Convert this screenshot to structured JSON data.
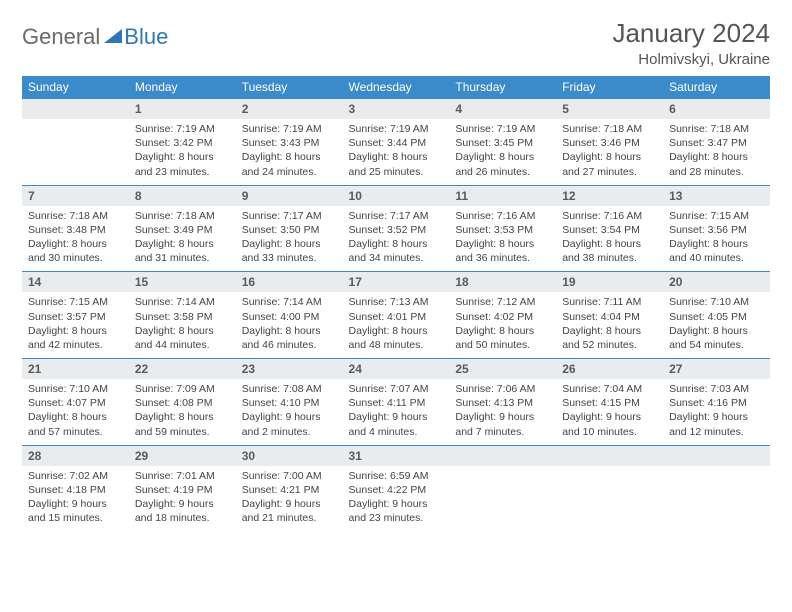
{
  "logo": {
    "general": "General",
    "blue": "Blue"
  },
  "title": "January 2024",
  "location": "Holmivskyi, Ukraine",
  "colors": {
    "header_bg": "#3b8aca",
    "header_text": "#ffffff",
    "daynum_bg": "#e8ecef",
    "border": "#3b8aca",
    "body_text": "#444444",
    "title_text": "#555555"
  },
  "typography": {
    "title_fontsize": 26,
    "location_fontsize": 15,
    "dayheader_fontsize": 12,
    "daynum_fontsize": 12,
    "cell_fontsize": 10.5
  },
  "day_headers": [
    "Sunday",
    "Monday",
    "Tuesday",
    "Wednesday",
    "Thursday",
    "Friday",
    "Saturday"
  ],
  "weeks": [
    [
      {
        "n": "",
        "sr": "",
        "ss": "",
        "dl1": "",
        "dl2": ""
      },
      {
        "n": "1",
        "sr": "Sunrise: 7:19 AM",
        "ss": "Sunset: 3:42 PM",
        "dl1": "Daylight: 8 hours",
        "dl2": "and 23 minutes."
      },
      {
        "n": "2",
        "sr": "Sunrise: 7:19 AM",
        "ss": "Sunset: 3:43 PM",
        "dl1": "Daylight: 8 hours",
        "dl2": "and 24 minutes."
      },
      {
        "n": "3",
        "sr": "Sunrise: 7:19 AM",
        "ss": "Sunset: 3:44 PM",
        "dl1": "Daylight: 8 hours",
        "dl2": "and 25 minutes."
      },
      {
        "n": "4",
        "sr": "Sunrise: 7:19 AM",
        "ss": "Sunset: 3:45 PM",
        "dl1": "Daylight: 8 hours",
        "dl2": "and 26 minutes."
      },
      {
        "n": "5",
        "sr": "Sunrise: 7:18 AM",
        "ss": "Sunset: 3:46 PM",
        "dl1": "Daylight: 8 hours",
        "dl2": "and 27 minutes."
      },
      {
        "n": "6",
        "sr": "Sunrise: 7:18 AM",
        "ss": "Sunset: 3:47 PM",
        "dl1": "Daylight: 8 hours",
        "dl2": "and 28 minutes."
      }
    ],
    [
      {
        "n": "7",
        "sr": "Sunrise: 7:18 AM",
        "ss": "Sunset: 3:48 PM",
        "dl1": "Daylight: 8 hours",
        "dl2": "and 30 minutes."
      },
      {
        "n": "8",
        "sr": "Sunrise: 7:18 AM",
        "ss": "Sunset: 3:49 PM",
        "dl1": "Daylight: 8 hours",
        "dl2": "and 31 minutes."
      },
      {
        "n": "9",
        "sr": "Sunrise: 7:17 AM",
        "ss": "Sunset: 3:50 PM",
        "dl1": "Daylight: 8 hours",
        "dl2": "and 33 minutes."
      },
      {
        "n": "10",
        "sr": "Sunrise: 7:17 AM",
        "ss": "Sunset: 3:52 PM",
        "dl1": "Daylight: 8 hours",
        "dl2": "and 34 minutes."
      },
      {
        "n": "11",
        "sr": "Sunrise: 7:16 AM",
        "ss": "Sunset: 3:53 PM",
        "dl1": "Daylight: 8 hours",
        "dl2": "and 36 minutes."
      },
      {
        "n": "12",
        "sr": "Sunrise: 7:16 AM",
        "ss": "Sunset: 3:54 PM",
        "dl1": "Daylight: 8 hours",
        "dl2": "and 38 minutes."
      },
      {
        "n": "13",
        "sr": "Sunrise: 7:15 AM",
        "ss": "Sunset: 3:56 PM",
        "dl1": "Daylight: 8 hours",
        "dl2": "and 40 minutes."
      }
    ],
    [
      {
        "n": "14",
        "sr": "Sunrise: 7:15 AM",
        "ss": "Sunset: 3:57 PM",
        "dl1": "Daylight: 8 hours",
        "dl2": "and 42 minutes."
      },
      {
        "n": "15",
        "sr": "Sunrise: 7:14 AM",
        "ss": "Sunset: 3:58 PM",
        "dl1": "Daylight: 8 hours",
        "dl2": "and 44 minutes."
      },
      {
        "n": "16",
        "sr": "Sunrise: 7:14 AM",
        "ss": "Sunset: 4:00 PM",
        "dl1": "Daylight: 8 hours",
        "dl2": "and 46 minutes."
      },
      {
        "n": "17",
        "sr": "Sunrise: 7:13 AM",
        "ss": "Sunset: 4:01 PM",
        "dl1": "Daylight: 8 hours",
        "dl2": "and 48 minutes."
      },
      {
        "n": "18",
        "sr": "Sunrise: 7:12 AM",
        "ss": "Sunset: 4:02 PM",
        "dl1": "Daylight: 8 hours",
        "dl2": "and 50 minutes."
      },
      {
        "n": "19",
        "sr": "Sunrise: 7:11 AM",
        "ss": "Sunset: 4:04 PM",
        "dl1": "Daylight: 8 hours",
        "dl2": "and 52 minutes."
      },
      {
        "n": "20",
        "sr": "Sunrise: 7:10 AM",
        "ss": "Sunset: 4:05 PM",
        "dl1": "Daylight: 8 hours",
        "dl2": "and 54 minutes."
      }
    ],
    [
      {
        "n": "21",
        "sr": "Sunrise: 7:10 AM",
        "ss": "Sunset: 4:07 PM",
        "dl1": "Daylight: 8 hours",
        "dl2": "and 57 minutes."
      },
      {
        "n": "22",
        "sr": "Sunrise: 7:09 AM",
        "ss": "Sunset: 4:08 PM",
        "dl1": "Daylight: 8 hours",
        "dl2": "and 59 minutes."
      },
      {
        "n": "23",
        "sr": "Sunrise: 7:08 AM",
        "ss": "Sunset: 4:10 PM",
        "dl1": "Daylight: 9 hours",
        "dl2": "and 2 minutes."
      },
      {
        "n": "24",
        "sr": "Sunrise: 7:07 AM",
        "ss": "Sunset: 4:11 PM",
        "dl1": "Daylight: 9 hours",
        "dl2": "and 4 minutes."
      },
      {
        "n": "25",
        "sr": "Sunrise: 7:06 AM",
        "ss": "Sunset: 4:13 PM",
        "dl1": "Daylight: 9 hours",
        "dl2": "and 7 minutes."
      },
      {
        "n": "26",
        "sr": "Sunrise: 7:04 AM",
        "ss": "Sunset: 4:15 PM",
        "dl1": "Daylight: 9 hours",
        "dl2": "and 10 minutes."
      },
      {
        "n": "27",
        "sr": "Sunrise: 7:03 AM",
        "ss": "Sunset: 4:16 PM",
        "dl1": "Daylight: 9 hours",
        "dl2": "and 12 minutes."
      }
    ],
    [
      {
        "n": "28",
        "sr": "Sunrise: 7:02 AM",
        "ss": "Sunset: 4:18 PM",
        "dl1": "Daylight: 9 hours",
        "dl2": "and 15 minutes."
      },
      {
        "n": "29",
        "sr": "Sunrise: 7:01 AM",
        "ss": "Sunset: 4:19 PM",
        "dl1": "Daylight: 9 hours",
        "dl2": "and 18 minutes."
      },
      {
        "n": "30",
        "sr": "Sunrise: 7:00 AM",
        "ss": "Sunset: 4:21 PM",
        "dl1": "Daylight: 9 hours",
        "dl2": "and 21 minutes."
      },
      {
        "n": "31",
        "sr": "Sunrise: 6:59 AM",
        "ss": "Sunset: 4:22 PM",
        "dl1": "Daylight: 9 hours",
        "dl2": "and 23 minutes."
      },
      {
        "n": "",
        "sr": "",
        "ss": "",
        "dl1": "",
        "dl2": ""
      },
      {
        "n": "",
        "sr": "",
        "ss": "",
        "dl1": "",
        "dl2": ""
      },
      {
        "n": "",
        "sr": "",
        "ss": "",
        "dl1": "",
        "dl2": ""
      }
    ]
  ]
}
